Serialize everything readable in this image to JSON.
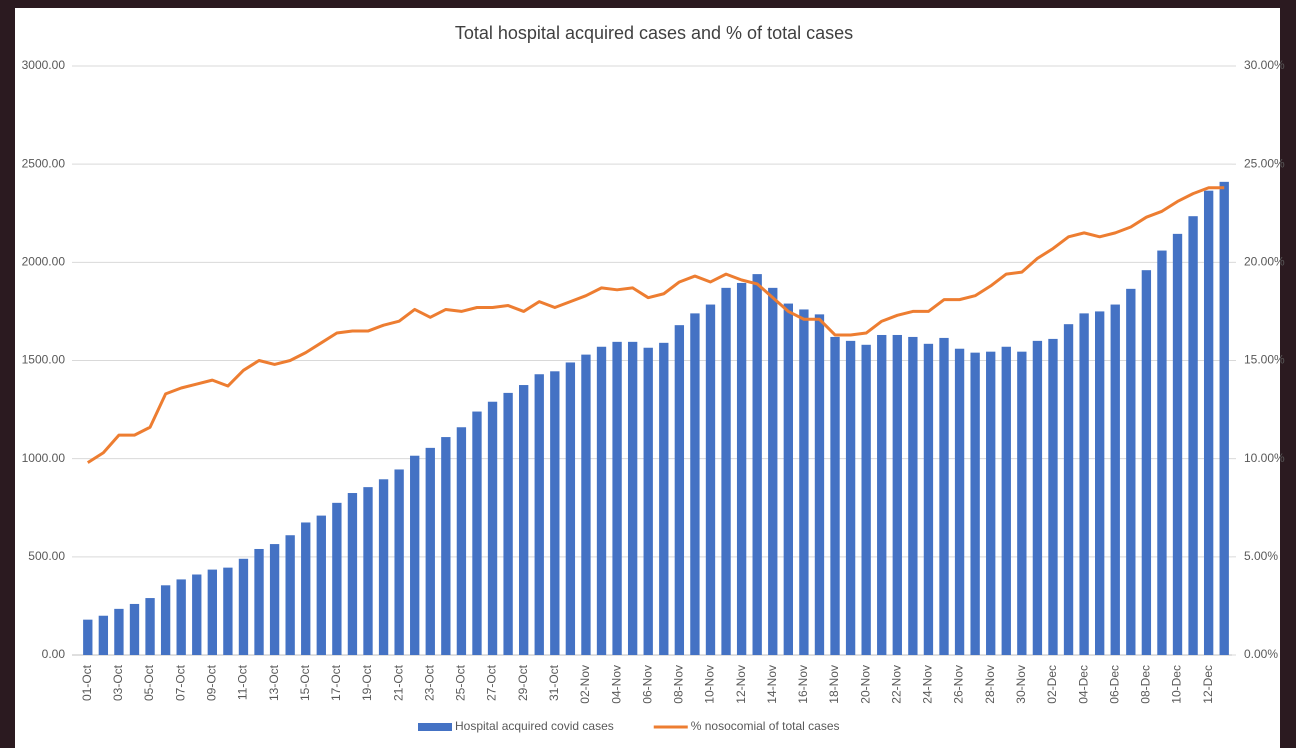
{
  "chart_data": {
    "type": "bar_line",
    "title": "Total hospital acquired cases and % of total cases",
    "categories": [
      "01-Oct",
      null,
      "03-Oct",
      null,
      "05-Oct",
      null,
      "07-Oct",
      null,
      "09-Oct",
      null,
      "11-Oct",
      null,
      "13-Oct",
      null,
      "15-Oct",
      null,
      "17-Oct",
      null,
      "19-Oct",
      null,
      "21-Oct",
      null,
      "23-Oct",
      null,
      "25-Oct",
      null,
      "27-Oct",
      null,
      "29-Oct",
      null,
      "31-Oct",
      null,
      "02-Nov",
      null,
      "04-Nov",
      null,
      "06-Nov",
      null,
      "08-Nov",
      null,
      "10-Nov",
      null,
      "12-Nov",
      null,
      "14-Nov",
      null,
      "16-Nov",
      null,
      "18-Nov",
      null,
      "20-Nov",
      null,
      "22-Nov",
      null,
      "24-Nov",
      null,
      "26-Nov",
      null,
      "28-Nov",
      null,
      "30-Nov",
      null,
      "02-Dec",
      null,
      "04-Dec",
      null,
      "06-Dec",
      null,
      "08-Dec",
      null,
      "10-Dec",
      null,
      "12-Dec",
      null
    ],
    "series": [
      {
        "name": "Hospital acquired covid cases",
        "type": "bar",
        "axis": "y",
        "color": "#4472c4",
        "values": [
          180,
          200,
          235,
          260,
          290,
          355,
          385,
          410,
          435,
          445,
          490,
          540,
          565,
          610,
          675,
          710,
          775,
          825,
          855,
          895,
          945,
          1015,
          1055,
          1110,
          1160,
          1240,
          1290,
          1335,
          1375,
          1430,
          1445,
          1490,
          1530,
          1570,
          1595,
          1595,
          1565,
          1590,
          1680,
          1740,
          1785,
          1870,
          1895,
          1940,
          1870,
          1790,
          1760,
          1735,
          1620,
          1600,
          1580,
          1630,
          1630,
          1620,
          1585,
          1615,
          1560,
          1540,
          1545,
          1570,
          1545,
          1600,
          1610,
          1685,
          1740,
          1750,
          1785,
          1865,
          1960,
          2060,
          2145,
          2235,
          2365,
          2410
        ]
      },
      {
        "name": "% nosocomial of total cases",
        "type": "line",
        "axis": "y2",
        "color": "#ed7d31",
        "values": [
          9.8,
          10.3,
          11.2,
          11.2,
          11.6,
          13.3,
          13.6,
          13.8,
          14.0,
          13.7,
          14.5,
          15.0,
          14.8,
          15.0,
          15.4,
          15.9,
          16.4,
          16.5,
          16.5,
          16.8,
          17.0,
          17.6,
          17.2,
          17.6,
          17.5,
          17.7,
          17.7,
          17.8,
          17.5,
          18.0,
          17.7,
          18.0,
          18.3,
          18.7,
          18.6,
          18.7,
          18.2,
          18.4,
          19.0,
          19.3,
          19.0,
          19.4,
          19.1,
          18.9,
          18.2,
          17.5,
          17.1,
          17.1,
          16.3,
          16.3,
          16.4,
          17.0,
          17.3,
          17.5,
          17.5,
          18.1,
          18.1,
          18.3,
          18.8,
          19.4,
          19.5,
          20.2,
          20.7,
          21.3,
          21.5,
          21.3,
          21.5,
          21.8,
          22.3,
          22.6,
          23.1,
          23.5,
          23.8,
          23.8
        ]
      }
    ],
    "ylim": [
      0,
      3000
    ],
    "yticks": [
      {
        "value": 0,
        "label": "0.00"
      },
      {
        "value": 500,
        "label": "500.00"
      },
      {
        "value": 1000,
        "label": "1000.00"
      },
      {
        "value": 1500,
        "label": "1500.00"
      },
      {
        "value": 2000,
        "label": "2000.00"
      },
      {
        "value": 2500,
        "label": "2500.00"
      },
      {
        "value": 3000,
        "label": "3000.00"
      }
    ],
    "y2lim": [
      0,
      30
    ],
    "y2ticks": [
      {
        "value": 0,
        "label": "0.00%"
      },
      {
        "value": 5,
        "label": "5.00%"
      },
      {
        "value": 10,
        "label": "10.00%"
      },
      {
        "value": 15,
        "label": "15.00%"
      },
      {
        "value": 20,
        "label": "20.00%"
      },
      {
        "value": 25,
        "label": "25.00%"
      },
      {
        "value": 30,
        "label": "30.00%"
      }
    ],
    "grid": true,
    "legend": "bottom"
  }
}
